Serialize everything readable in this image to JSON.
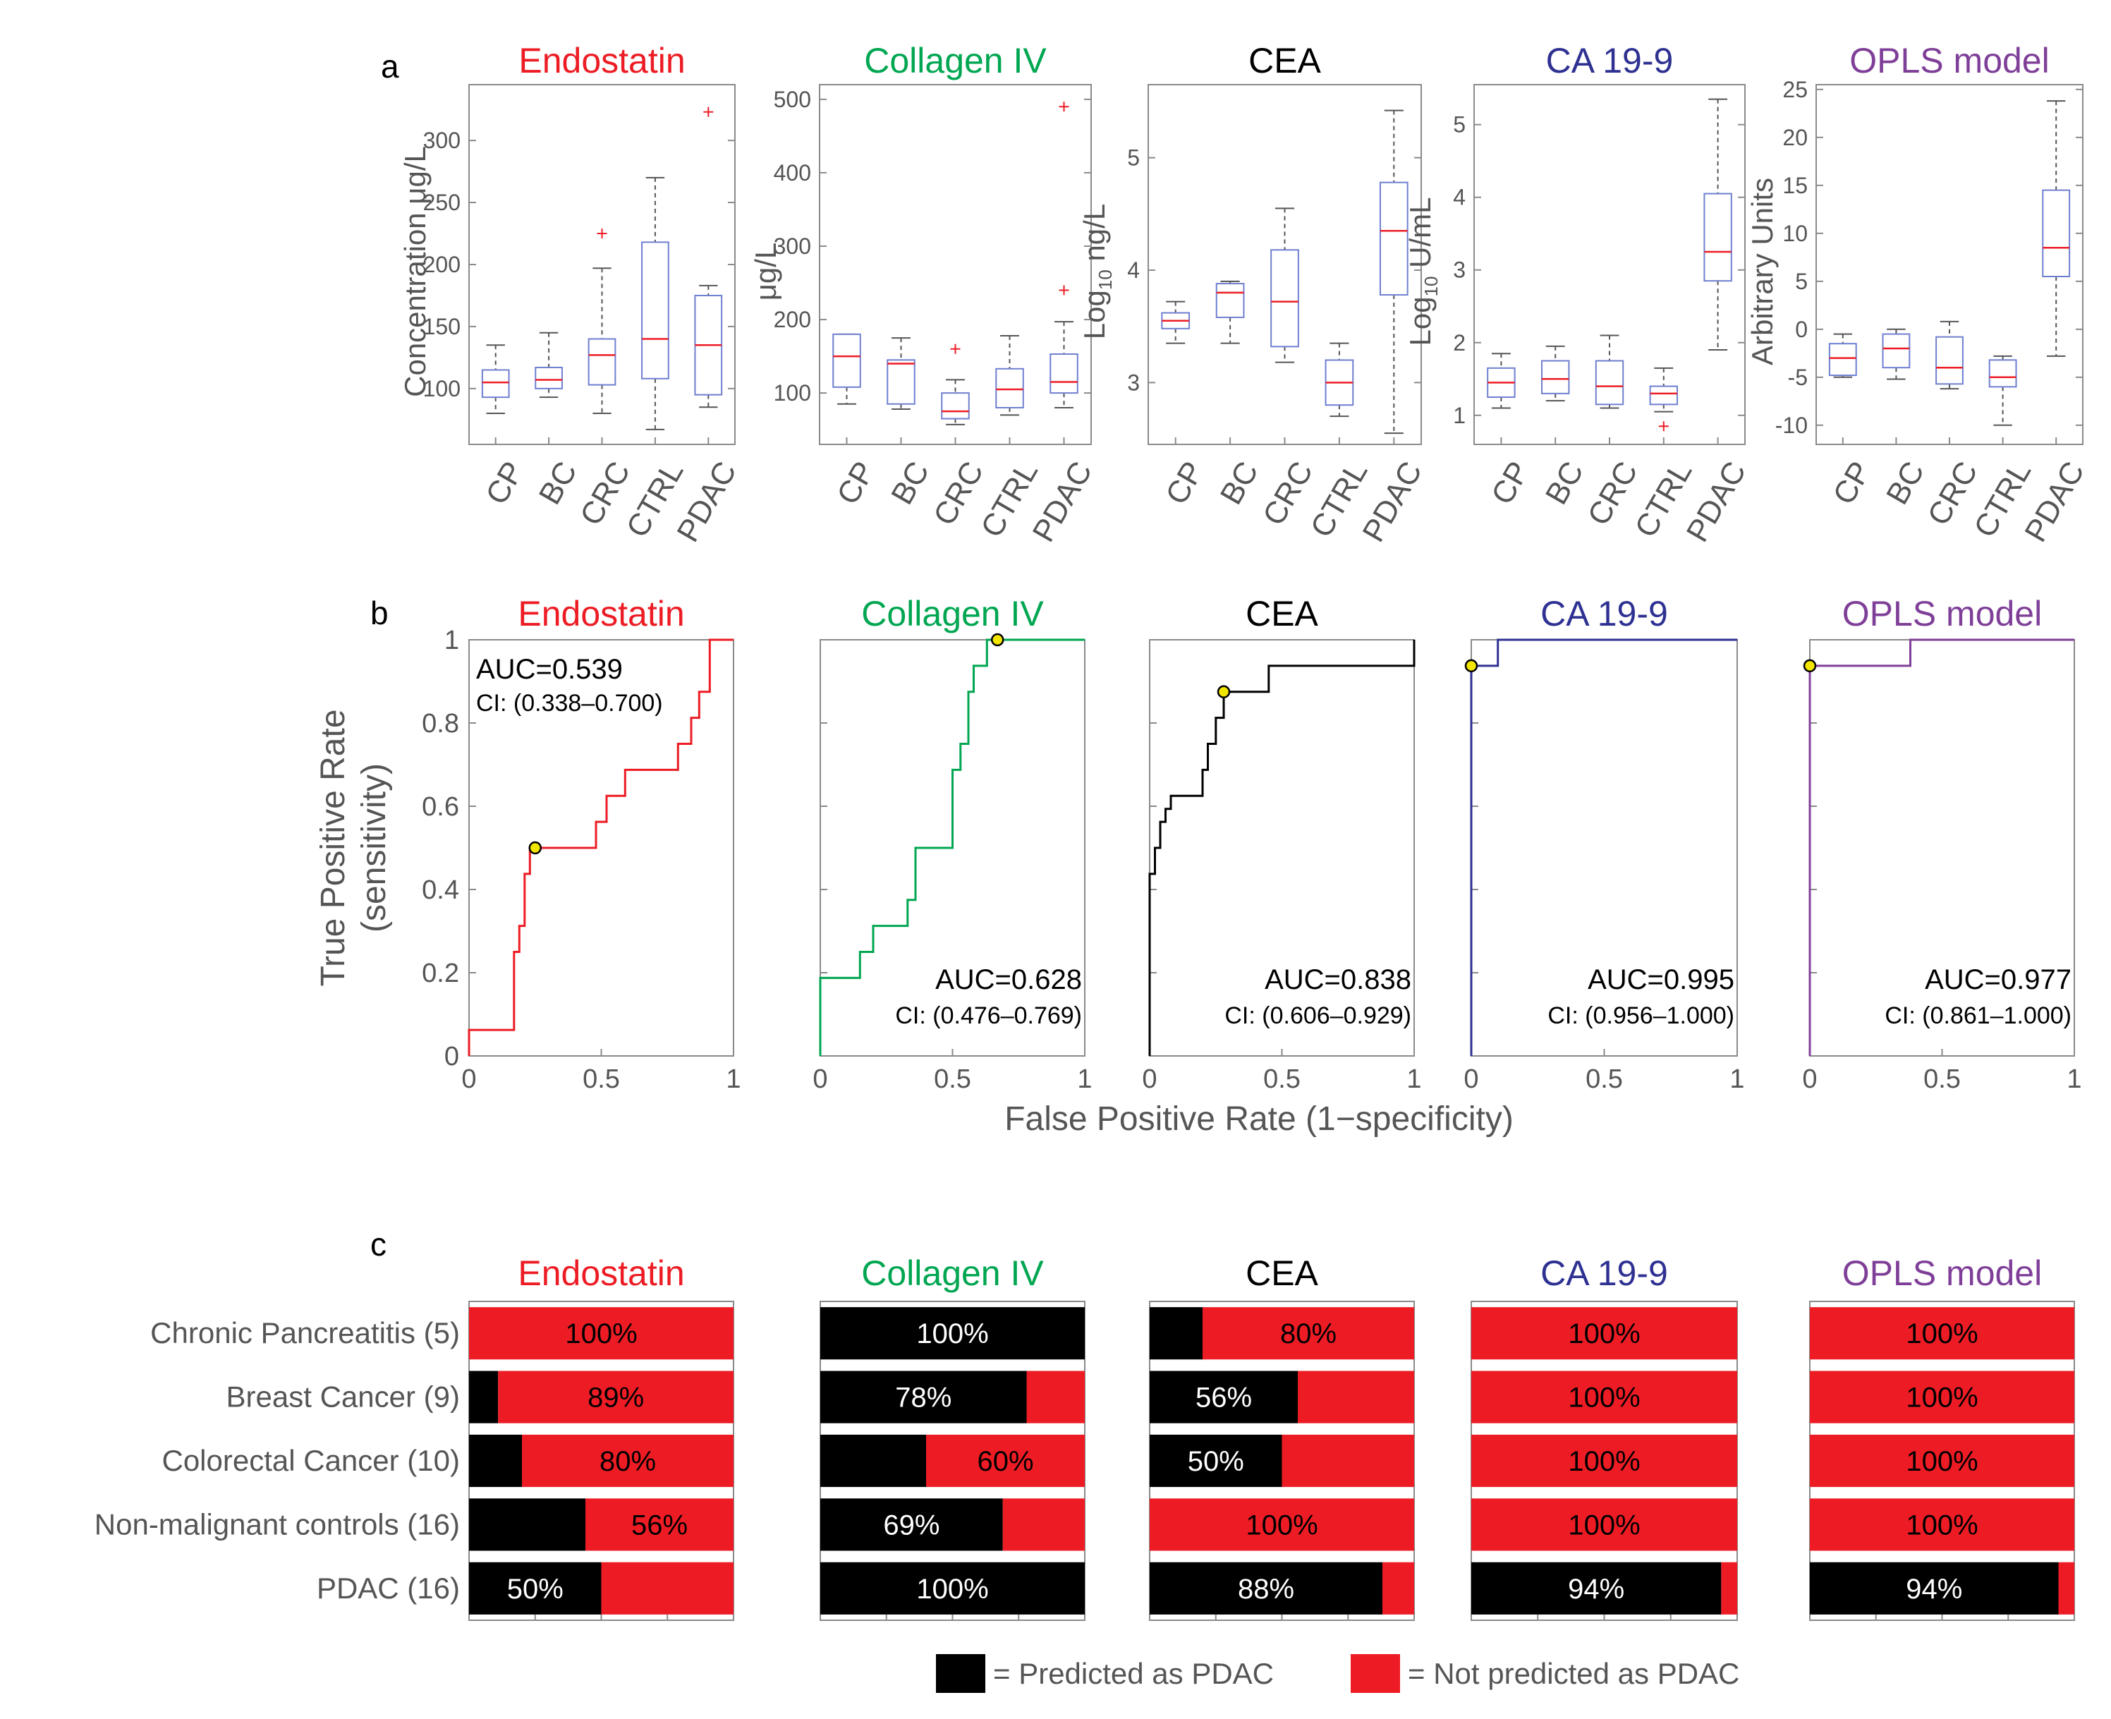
{
  "colors": {
    "endostatin": "#ed1c24",
    "collagen": "#00a651",
    "cea": "#000000",
    "ca199": "#2e3192",
    "opls": "#7f3f98",
    "box_edge": "#6f7fd0",
    "median": "#ed1c24",
    "whisker": "#555555",
    "axis": "#8a8a8a",
    "tick_text": "#555555",
    "predicted": "#000000",
    "not_predicted": "#ed1c24"
  },
  "panels": {
    "a_label": "a",
    "b_label": "b",
    "c_label": "c"
  },
  "legend": {
    "predicted": "= Predicted as PDAC",
    "not_predicted": "= Not predicted as PDAC"
  },
  "chart_data": [
    {
      "type": "box",
      "panel": "a",
      "title": "Endostatin",
      "title_color": "#ed1c24",
      "ylabel": "Concentration μg/L",
      "ylim": [
        55,
        345
      ],
      "yticks": [
        100,
        150,
        200,
        250,
        300
      ],
      "categories": [
        "CP",
        "BC",
        "CRC",
        "CTRL",
        "PDAC"
      ],
      "boxes": [
        {
          "min": 80,
          "q1": 93,
          "median": 105,
          "q3": 115,
          "max": 135,
          "outliers": []
        },
        {
          "min": 93,
          "q1": 100,
          "median": 107,
          "q3": 117,
          "max": 145,
          "outliers": []
        },
        {
          "min": 80,
          "q1": 103,
          "median": 127,
          "q3": 140,
          "max": 197,
          "outliers": [
            225
          ]
        },
        {
          "min": 67,
          "q1": 108,
          "median": 140,
          "q3": 218,
          "max": 270,
          "outliers": []
        },
        {
          "min": 85,
          "q1": 95,
          "median": 135,
          "q3": 175,
          "max": 183,
          "outliers": [
            323
          ]
        }
      ]
    },
    {
      "type": "box",
      "panel": "a",
      "title": "Collagen IV",
      "title_color": "#00a651",
      "ylabel": "μg/L",
      "ylim": [
        30,
        520
      ],
      "yticks": [
        100,
        200,
        300,
        400,
        500
      ],
      "categories": [
        "CP",
        "BC",
        "CRC",
        "CTRL",
        "PDAC"
      ],
      "boxes": [
        {
          "min": 85,
          "q1": 108,
          "median": 150,
          "q3": 180,
          "max": 180,
          "outliers": []
        },
        {
          "min": 78,
          "q1": 85,
          "median": 140,
          "q3": 145,
          "max": 175,
          "outliers": []
        },
        {
          "min": 57,
          "q1": 65,
          "median": 75,
          "q3": 100,
          "max": 118,
          "outliers": [
            160
          ]
        },
        {
          "min": 70,
          "q1": 80,
          "median": 105,
          "q3": 133,
          "max": 178,
          "outliers": []
        },
        {
          "min": 80,
          "q1": 100,
          "median": 115,
          "q3": 153,
          "max": 197,
          "outliers": [
            240,
            490
          ]
        }
      ]
    },
    {
      "type": "box",
      "panel": "a",
      "title": "CEA",
      "title_color": "#000000",
      "ylabel": "Log10 ng/L",
      "ylim": [
        2.45,
        5.65
      ],
      "yticks": [
        3,
        4,
        5
      ],
      "categories": [
        "CP",
        "BC",
        "CRC",
        "CTRL",
        "PDAC"
      ],
      "boxes": [
        {
          "min": 3.35,
          "q1": 3.48,
          "median": 3.55,
          "q3": 3.62,
          "max": 3.72,
          "outliers": []
        },
        {
          "min": 3.35,
          "q1": 3.58,
          "median": 3.8,
          "q3": 3.88,
          "max": 3.9,
          "outliers": []
        },
        {
          "min": 3.18,
          "q1": 3.32,
          "median": 3.72,
          "q3": 4.18,
          "max": 4.55,
          "outliers": []
        },
        {
          "min": 2.7,
          "q1": 2.8,
          "median": 3.0,
          "q3": 3.2,
          "max": 3.35,
          "outliers": []
        },
        {
          "min": 2.55,
          "q1": 3.78,
          "median": 4.35,
          "q3": 4.78,
          "max": 5.42,
          "outliers": []
        }
      ]
    },
    {
      "type": "box",
      "panel": "a",
      "title": "CA 19-9",
      "title_color": "#2e3192",
      "ylabel": "Log10 U/mL",
      "ylim": [
        0.6,
        5.55
      ],
      "yticks": [
        1,
        2,
        3,
        4,
        5
      ],
      "categories": [
        "CP",
        "BC",
        "CRC",
        "CTRL",
        "PDAC"
      ],
      "boxes": [
        {
          "min": 1.1,
          "q1": 1.25,
          "median": 1.45,
          "q3": 1.65,
          "max": 1.85,
          "outliers": []
        },
        {
          "min": 1.2,
          "q1": 1.3,
          "median": 1.5,
          "q3": 1.75,
          "max": 1.95,
          "outliers": []
        },
        {
          "min": 1.1,
          "q1": 1.15,
          "median": 1.4,
          "q3": 1.75,
          "max": 2.1,
          "outliers": []
        },
        {
          "min": 1.05,
          "q1": 1.15,
          "median": 1.3,
          "q3": 1.4,
          "max": 1.65,
          "outliers": [
            0.85
          ]
        },
        {
          "min": 1.9,
          "q1": 2.85,
          "median": 3.25,
          "q3": 4.05,
          "max": 5.35,
          "outliers": []
        }
      ]
    },
    {
      "type": "box",
      "panel": "a",
      "title": "OPLS model",
      "title_color": "#7f3f98",
      "ylabel": "Arbitrary Units",
      "ylim": [
        -12,
        25.5
      ],
      "yticks": [
        -10,
        -5,
        0,
        5,
        10,
        15,
        20,
        25
      ],
      "categories": [
        "CP",
        "BC",
        "CRC",
        "CTRL",
        "PDAC"
      ],
      "boxes": [
        {
          "min": -5,
          "q1": -4.8,
          "median": -3,
          "q3": -1.5,
          "max": -0.5,
          "outliers": []
        },
        {
          "min": -5.2,
          "q1": -4,
          "median": -2,
          "q3": -0.5,
          "max": 0,
          "outliers": []
        },
        {
          "min": -6.2,
          "q1": -5.7,
          "median": -4,
          "q3": -0.8,
          "max": 0.8,
          "outliers": []
        },
        {
          "min": -10,
          "q1": -6,
          "median": -5,
          "q3": -3.2,
          "max": -2.8,
          "outliers": []
        },
        {
          "min": -2.8,
          "q1": 5.5,
          "median": 8.5,
          "q3": 14.5,
          "max": 23.8,
          "outliers": []
        }
      ]
    },
    {
      "type": "line",
      "panel": "b",
      "title": "Endostatin",
      "title_color": "#ed1c24",
      "xlabel": "False Positive Rate (1−specificity)",
      "ylabel": "True Positive Rate (sensitivity)",
      "xlim": [
        0,
        1
      ],
      "ylim": [
        0,
        1
      ],
      "xticks": [
        0,
        0.5,
        1
      ],
      "xticklabels": [
        "0",
        "0.5",
        "1"
      ],
      "yticks": [
        0,
        0.2,
        0.4,
        0.6,
        0.8,
        1
      ],
      "yticklabels": [
        "0",
        "0.2",
        "0.4",
        "0.6",
        "0.8",
        "1"
      ],
      "auc": "AUC=0.539",
      "ci": "CI: (0.338–0.700)",
      "text_pos": "top-left",
      "roc_x": [
        0,
        0,
        0.17,
        0.17,
        0.19,
        0.19,
        0.21,
        0.21,
        0.23,
        0.23,
        0.25,
        0.25,
        0.48,
        0.48,
        0.52,
        0.52,
        0.59,
        0.59,
        0.79,
        0.79,
        0.84,
        0.84,
        0.87,
        0.87,
        0.91,
        0.91,
        1
      ],
      "roc_y": [
        0,
        0.0625,
        0.0625,
        0.25,
        0.25,
        0.3125,
        0.3125,
        0.4375,
        0.4375,
        0.5,
        0.5,
        0.5,
        0.5,
        0.5625,
        0.5625,
        0.625,
        0.625,
        0.6875,
        0.6875,
        0.75,
        0.75,
        0.8125,
        0.8125,
        0.875,
        0.875,
        1,
        1
      ],
      "optimal_point": [
        0.25,
        0.5
      ]
    },
    {
      "type": "line",
      "panel": "b",
      "title": "Collagen IV",
      "title_color": "#00a651",
      "xlim": [
        0,
        1
      ],
      "ylim": [
        0,
        1
      ],
      "xticks": [
        0,
        0.5,
        1
      ],
      "xticklabels": [
        "0",
        "0.5",
        "1"
      ],
      "auc": "AUC=0.628",
      "ci": "CI: (0.476–0.769)",
      "text_pos": "bottom-right",
      "roc_x": [
        0,
        0,
        0.15,
        0.15,
        0.2,
        0.2,
        0.33,
        0.33,
        0.36,
        0.36,
        0.5,
        0.5,
        0.53,
        0.53,
        0.56,
        0.56,
        0.58,
        0.58,
        0.63,
        0.63,
        0.67,
        0.67,
        1
      ],
      "roc_y": [
        0,
        0.1875,
        0.1875,
        0.25,
        0.25,
        0.3125,
        0.3125,
        0.375,
        0.375,
        0.5,
        0.5,
        0.6875,
        0.6875,
        0.75,
        0.75,
        0.875,
        0.875,
        0.9375,
        0.9375,
        1,
        1,
        1,
        1
      ],
      "optimal_point": [
        0.67,
        1
      ]
    },
    {
      "type": "line",
      "panel": "b",
      "title": "CEA",
      "title_color": "#000000",
      "xlim": [
        0,
        1
      ],
      "ylim": [
        0,
        1
      ],
      "xticks": [
        0,
        0.5,
        1
      ],
      "xticklabels": [
        "0",
        "0.5",
        "1"
      ],
      "auc": "AUC=0.838",
      "ci": "CI: (0.606–0.929)",
      "text_pos": "bottom-right",
      "roc_x": [
        0,
        0,
        0.02,
        0.02,
        0.04,
        0.04,
        0.06,
        0.06,
        0.08,
        0.08,
        0.2,
        0.2,
        0.22,
        0.22,
        0.25,
        0.25,
        0.28,
        0.28,
        0.45,
        0.45,
        1,
        1
      ],
      "roc_y": [
        0,
        0.4375,
        0.4375,
        0.5,
        0.5,
        0.5625,
        0.5625,
        0.5938,
        0.5938,
        0.625,
        0.625,
        0.6875,
        0.6875,
        0.75,
        0.75,
        0.8125,
        0.8125,
        0.875,
        0.875,
        0.9375,
        0.9375,
        1
      ],
      "optimal_point": [
        0.28,
        0.875
      ]
    },
    {
      "type": "line",
      "panel": "b",
      "title": "CA 19-9",
      "title_color": "#2e3192",
      "xlim": [
        0,
        1
      ],
      "ylim": [
        0,
        1
      ],
      "xticks": [
        0,
        0.5,
        1
      ],
      "xticklabels": [
        "0",
        "0.5",
        "1"
      ],
      "auc": "AUC=0.995",
      "ci": "CI: (0.956–1.000)",
      "text_pos": "bottom-right",
      "roc_x": [
        0,
        0,
        0.1,
        0.1,
        1
      ],
      "roc_y": [
        0,
        0.9375,
        0.9375,
        1,
        1
      ],
      "optimal_point": [
        0,
        0.9375
      ]
    },
    {
      "type": "line",
      "panel": "b",
      "title": "OPLS model",
      "title_color": "#7f3f98",
      "xlim": [
        0,
        1
      ],
      "ylim": [
        0,
        1
      ],
      "xticks": [
        0,
        0.5,
        1
      ],
      "xticklabels": [
        "0",
        "0.5",
        "1"
      ],
      "auc": "AUC=0.977",
      "ci": "CI: (0.861–1.000)",
      "text_pos": "bottom-right",
      "roc_x": [
        0,
        0,
        0.38,
        0.38,
        1
      ],
      "roc_y": [
        0,
        0.9375,
        0.9375,
        1,
        1
      ],
      "optimal_point": [
        0,
        0.9375
      ]
    },
    {
      "type": "bar",
      "panel": "c",
      "title": "Endostatin",
      "title_color": "#ed1c24",
      "categories": [
        "Chronic Pancreatitis (5)",
        "Breast Cancer (9)",
        "Colorectal  Cancer (10)",
        "Non-malignant controls (16)",
        "PDAC (16)"
      ],
      "predicted_fraction": [
        0,
        0.11,
        0.2,
        0.44,
        0.5
      ],
      "labels": [
        {
          "text": "100%",
          "segment": "red"
        },
        {
          "text": "89%",
          "segment": "red"
        },
        {
          "text": "80%",
          "segment": "red"
        },
        {
          "text": "56%",
          "segment": "red"
        },
        {
          "text": "50%",
          "segment": "black"
        }
      ]
    },
    {
      "type": "bar",
      "panel": "c",
      "title": "Collagen IV",
      "title_color": "#00a651",
      "categories": [
        "Chronic Pancreatitis (5)",
        "Breast Cancer (9)",
        "Colorectal  Cancer (10)",
        "Non-malignant controls (16)",
        "PDAC (16)"
      ],
      "predicted_fraction": [
        1,
        0.78,
        0.4,
        0.69,
        1
      ],
      "labels": [
        {
          "text": "100%",
          "segment": "black"
        },
        {
          "text": "78%",
          "segment": "black"
        },
        {
          "text": "60%",
          "segment": "red"
        },
        {
          "text": "69%",
          "segment": "black"
        },
        {
          "text": "100%",
          "segment": "black"
        }
      ]
    },
    {
      "type": "bar",
      "panel": "c",
      "title": "CEA",
      "title_color": "#000000",
      "categories": [
        "Chronic Pancreatitis (5)",
        "Breast Cancer (9)",
        "Colorectal  Cancer (10)",
        "Non-malignant controls (16)",
        "PDAC (16)"
      ],
      "predicted_fraction": [
        0.2,
        0.56,
        0.5,
        0,
        0.88
      ],
      "labels": [
        {
          "text": "80%",
          "segment": "red"
        },
        {
          "text": "56%",
          "segment": "black"
        },
        {
          "text": "50%",
          "segment": "black"
        },
        {
          "text": "100%",
          "segment": "red"
        },
        {
          "text": "88%",
          "segment": "black"
        }
      ]
    },
    {
      "type": "bar",
      "panel": "c",
      "title": "CA 19-9",
      "title_color": "#2e3192",
      "categories": [
        "Chronic Pancreatitis (5)",
        "Breast Cancer (9)",
        "Colorectal  Cancer (10)",
        "Non-malignant controls (16)",
        "PDAC (16)"
      ],
      "predicted_fraction": [
        0,
        0,
        0,
        0,
        0.94
      ],
      "labels": [
        {
          "text": "100%",
          "segment": "red"
        },
        {
          "text": "100%",
          "segment": "red"
        },
        {
          "text": "100%",
          "segment": "red"
        },
        {
          "text": "100%",
          "segment": "red"
        },
        {
          "text": "94%",
          "segment": "black"
        }
      ]
    },
    {
      "type": "bar",
      "panel": "c",
      "title": "OPLS model",
      "title_color": "#7f3f98",
      "categories": [
        "Chronic Pancreatitis (5)",
        "Breast Cancer (9)",
        "Colorectal  Cancer (10)",
        "Non-malignant controls (16)",
        "PDAC (16)"
      ],
      "predicted_fraction": [
        0,
        0,
        0,
        0,
        0.94
      ],
      "labels": [
        {
          "text": "100%",
          "segment": "red"
        },
        {
          "text": "100%",
          "segment": "red"
        },
        {
          "text": "100%",
          "segment": "red"
        },
        {
          "text": "100%",
          "segment": "red"
        },
        {
          "text": "94%",
          "segment": "black"
        }
      ]
    }
  ]
}
